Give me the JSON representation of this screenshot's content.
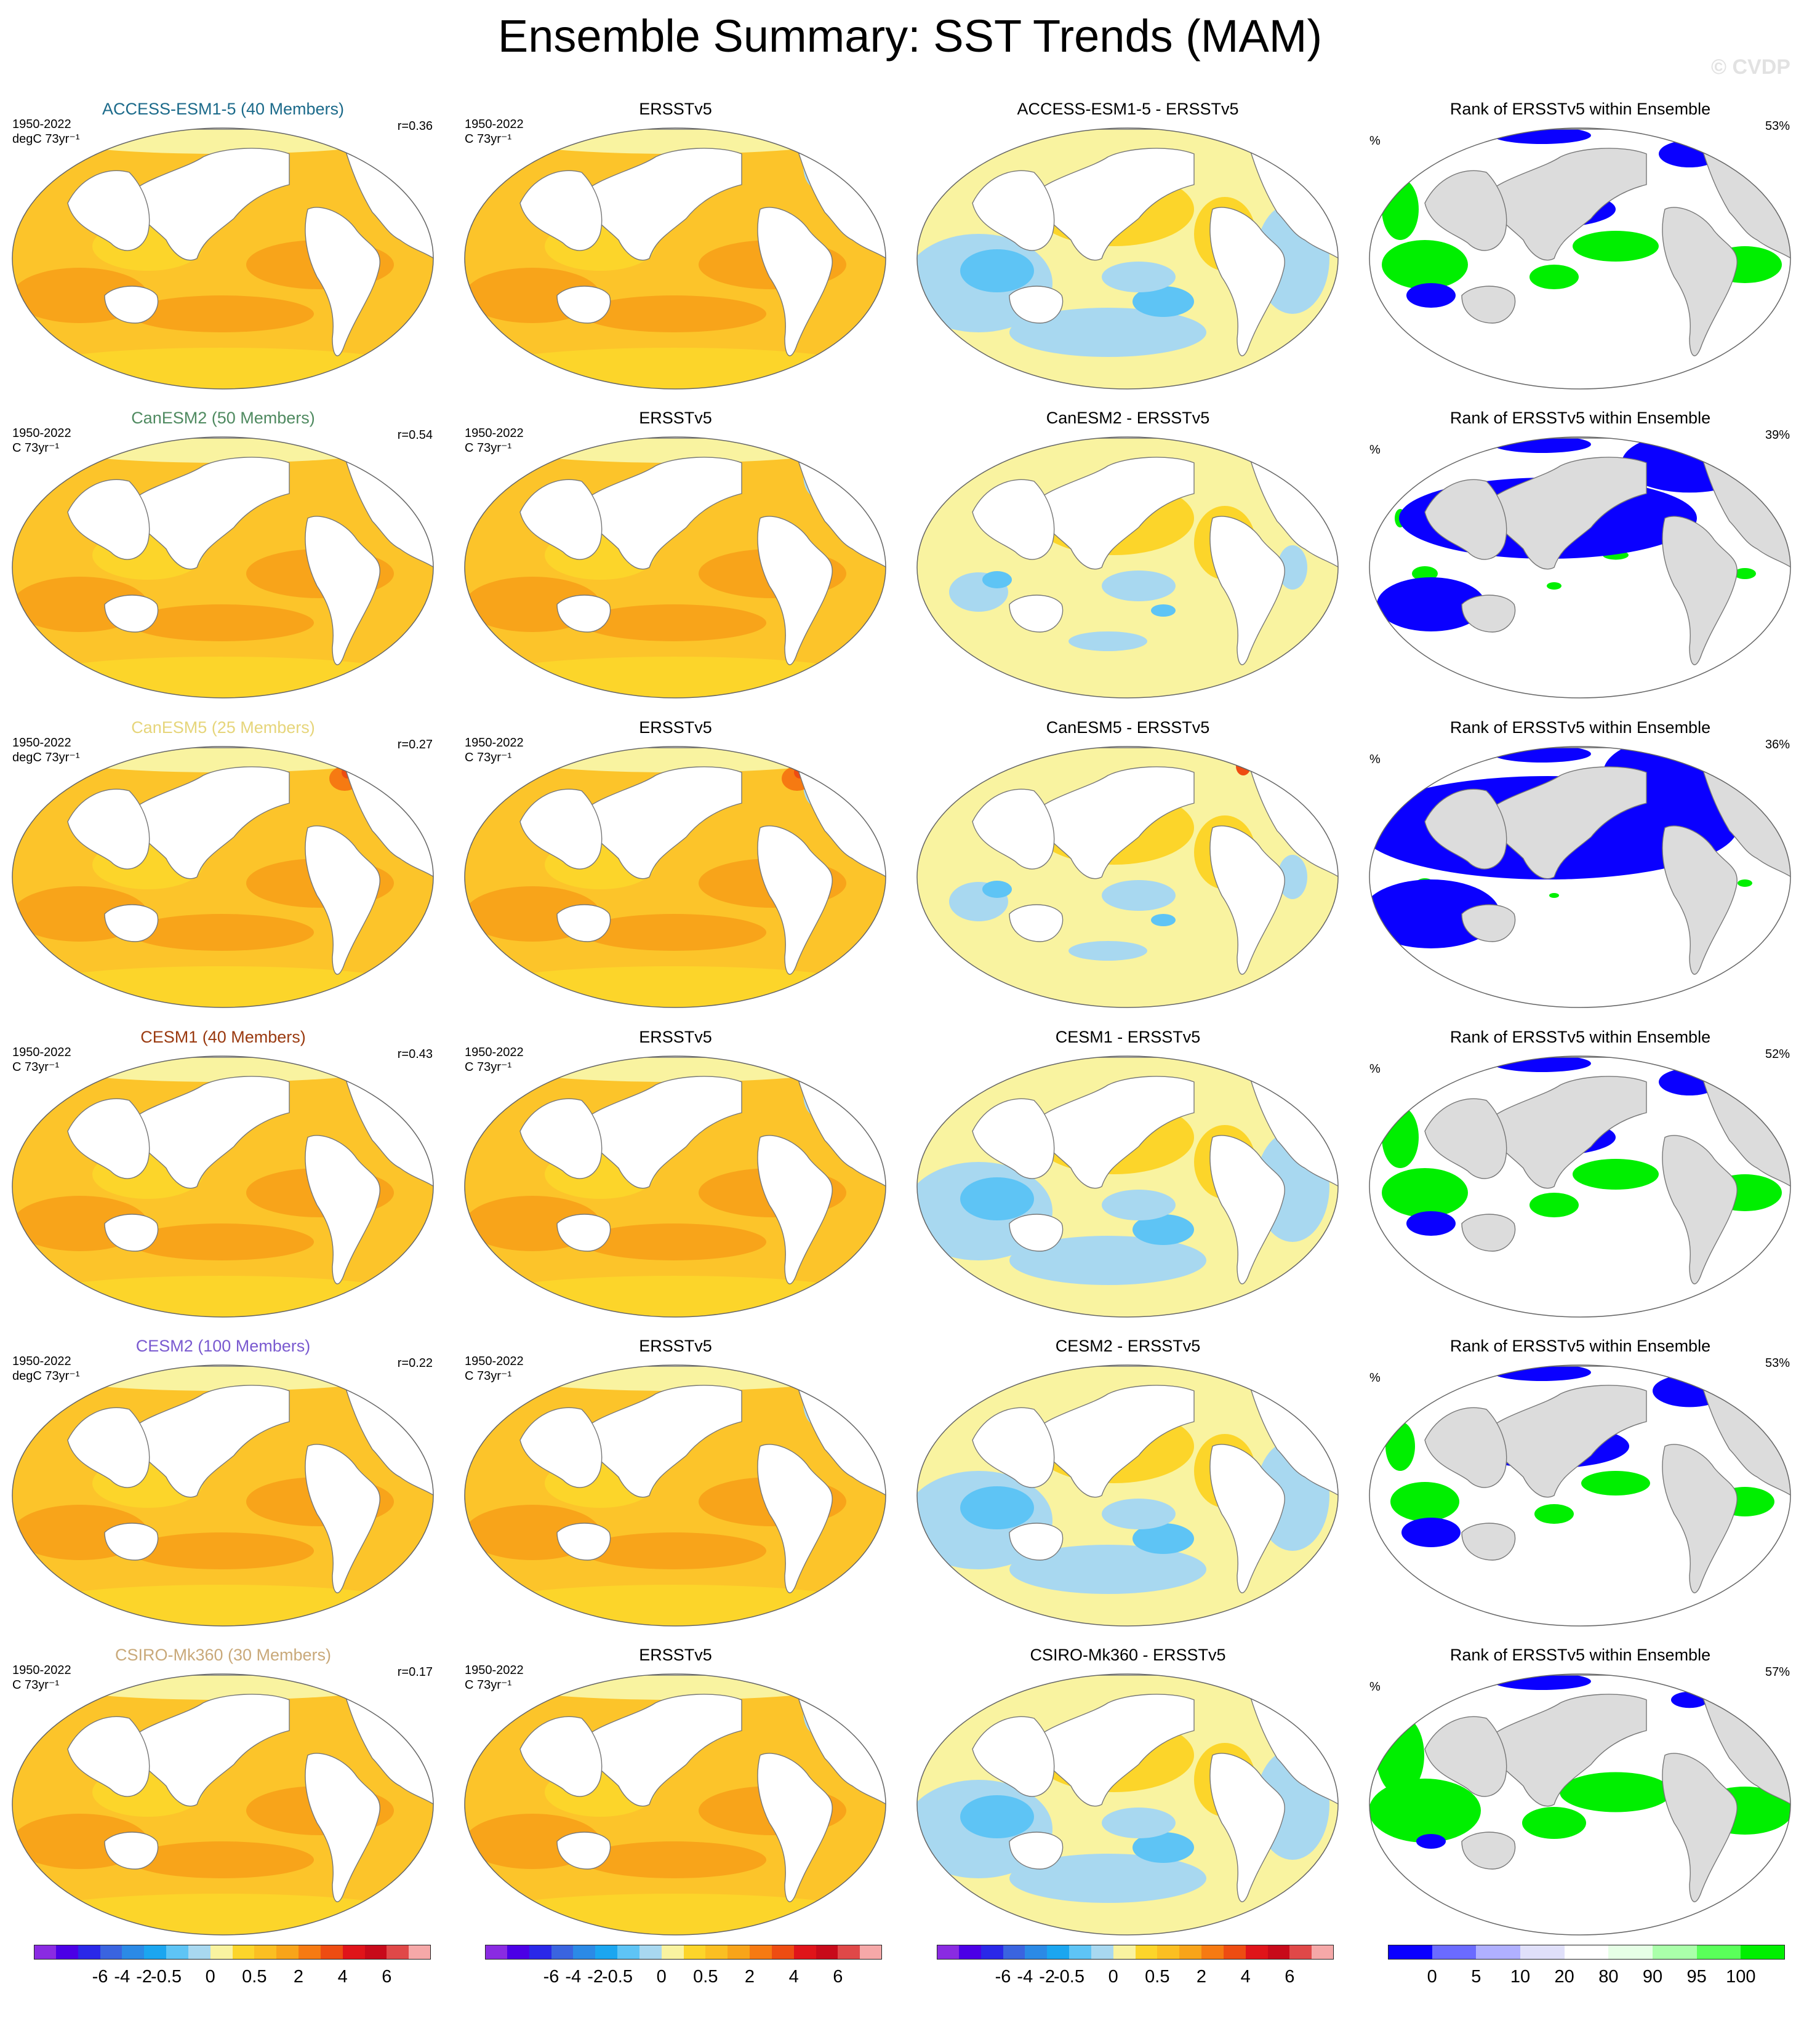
{
  "title": "Ensemble Summary: SST Trends (MAM)",
  "watermark": "© CVDP",
  "obs_name": "ERSSTv5",
  "rank_title": "Rank of ERSSTv5 within Ensemble",
  "rows": [
    {
      "model_title": "ACCESS-ESM1-5 (40 Members)",
      "model_color": "#1b6a8a",
      "model_period": "1950-2022",
      "model_units": "degC 73yr⁻¹",
      "r": "r=0.36",
      "obs_title": "ERSSTv5",
      "obs_period": "1950-2022",
      "obs_units": "C 73yr⁻¹",
      "diff_title": "ACCESS-ESM1-5 - ERSSTv5",
      "rank_title": "Rank of ERSSTv5 within Ensemble",
      "rank_unit": "%",
      "rank_pct": "53%"
    },
    {
      "model_title": "CanESM2 (50 Members)",
      "model_color": "#4f8a60",
      "model_period": "1950-2022",
      "model_units": "C 73yr⁻¹",
      "r": "r=0.54",
      "obs_title": "ERSSTv5",
      "obs_period": "1950-2022",
      "obs_units": "C 73yr⁻¹",
      "diff_title": "CanESM2 - ERSSTv5",
      "rank_title": "Rank of ERSSTv5 within Ensemble",
      "rank_unit": "%",
      "rank_pct": "39%"
    },
    {
      "model_title": "CanESM5 (25 Members)",
      "model_color": "#e6d57a",
      "model_period": "1950-2022",
      "model_units": "degC 73yr⁻¹",
      "r": "r=0.27",
      "obs_title": "ERSSTv5",
      "obs_period": "1950-2022",
      "obs_units": "C 73yr⁻¹",
      "diff_title": "CanESM5 - ERSSTv5",
      "rank_title": "Rank of ERSSTv5 within Ensemble",
      "rank_unit": "%",
      "rank_pct": "36%"
    },
    {
      "model_title": "CESM1 (40 Members)",
      "model_color": "#9a3a10",
      "model_period": "1950-2022",
      "model_units": "C 73yr⁻¹",
      "r": "r=0.43",
      "obs_title": "ERSSTv5",
      "obs_period": "1950-2022",
      "obs_units": "C 73yr⁻¹",
      "diff_title": "CESM1 - ERSSTv5",
      "rank_title": "Rank of ERSSTv5 within Ensemble",
      "rank_unit": "%",
      "rank_pct": "52%"
    },
    {
      "model_title": "CESM2 (100 Members)",
      "model_color": "#7a5ad0",
      "model_period": "1950-2022",
      "model_units": "degC 73yr⁻¹",
      "r": "r=0.22",
      "obs_title": "ERSSTv5",
      "obs_period": "1950-2022",
      "obs_units": "C 73yr⁻¹",
      "diff_title": "CESM2 - ERSSTv5",
      "rank_title": "Rank of ERSSTv5 within Ensemble",
      "rank_unit": "%",
      "rank_pct": "53%"
    },
    {
      "model_title": "CSIRO-Mk360 (30 Members)",
      "model_color": "#c9a97a",
      "model_period": "1950-2022",
      "model_units": "C 73yr⁻¹",
      "r": "r=0.17",
      "obs_title": "ERSSTv5",
      "obs_period": "1950-2022",
      "obs_units": "C 73yr⁻¹",
      "diff_title": "CSIRO-Mk360 - ERSSTv5",
      "rank_title": "Rank of ERSSTv5 within Ensemble",
      "rank_unit": "%",
      "rank_pct": "57%"
    }
  ],
  "colorbars": {
    "trend": {
      "colors": [
        "#8a2be2",
        "#4b00e6",
        "#2a28e8",
        "#3a64e0",
        "#2b8ae6",
        "#1ba6f0",
        "#5ec4f5",
        "#a8d8f0",
        "#f9f3a0",
        "#fcd52a",
        "#fbbf22",
        "#f8a41a",
        "#f67a12",
        "#ee4c12",
        "#e0141a",
        "#c80a1a",
        "#e04848",
        "#f5a8a8"
      ],
      "ticks": [
        "-6",
        "-4",
        "-2",
        "-0.5",
        "0",
        "0.5",
        "2",
        "4",
        "6"
      ]
    },
    "rank": {
      "colors": [
        "#0a00ff",
        "#6b6bff",
        "#b0b0ff",
        "#e0e0fa",
        "#ffffff",
        "#e6ffe6",
        "#aaffaa",
        "#5aff5a",
        "#00ef00"
      ],
      "ticks": [
        "0",
        "5",
        "10",
        "20",
        "80",
        "90",
        "95",
        "100"
      ]
    }
  }
}
